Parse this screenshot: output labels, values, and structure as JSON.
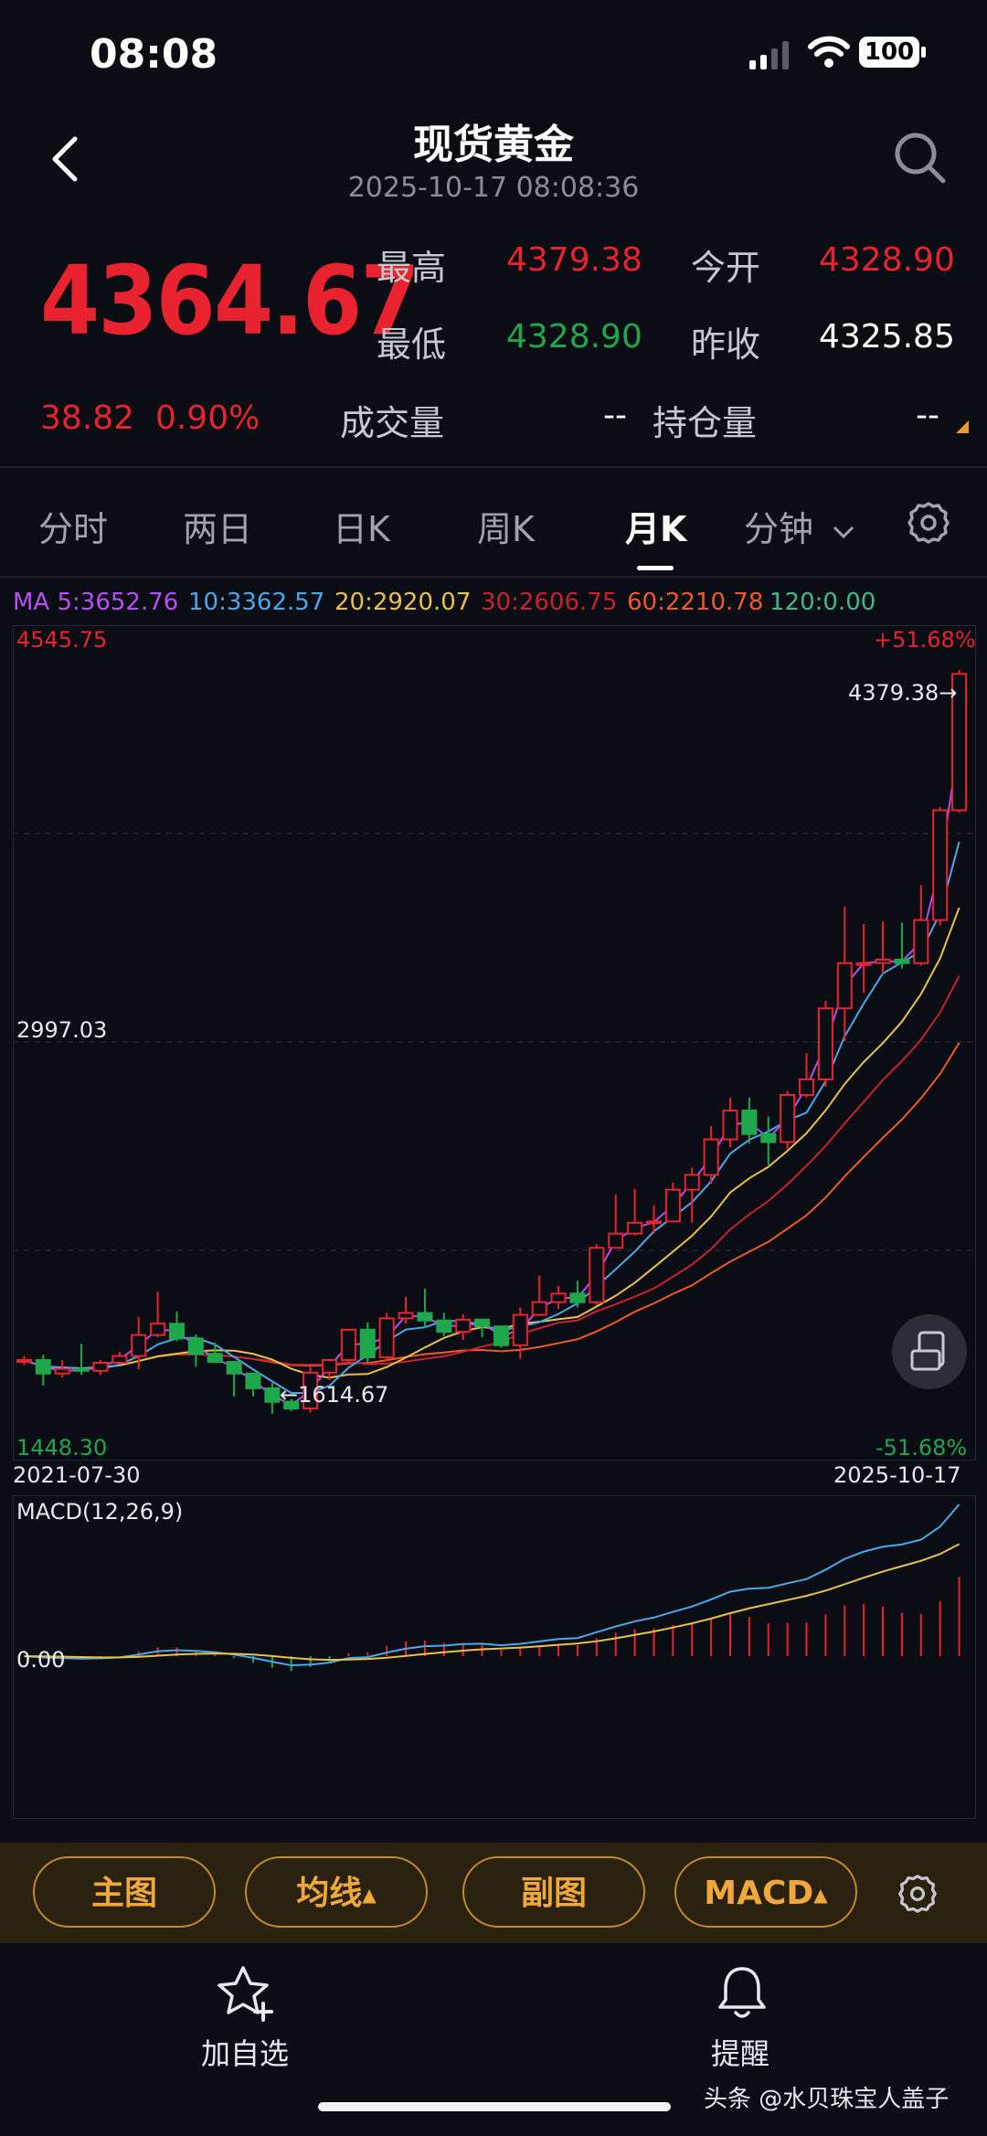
{
  "status": {
    "time": "08:08",
    "battery": "100"
  },
  "header": {
    "title": "现货黄金",
    "timestamp": "2025-10-17 08:08:36"
  },
  "quote": {
    "price": "4364.67",
    "change": "38.82",
    "change_pct": "0.90%",
    "high_label": "最高",
    "high": "4379.38",
    "open_label": "今开",
    "open": "4328.90",
    "low_label": "最低",
    "low": "4328.90",
    "prev_close_label": "昨收",
    "prev_close": "4325.85",
    "volume_label": "成交量",
    "volume": "--",
    "open_interest_label": "持仓量",
    "open_interest": "--"
  },
  "tabs": [
    "分时",
    "两日",
    "日K",
    "周K",
    "月K",
    "分钟"
  ],
  "active_tab": "月K",
  "ma_line": {
    "ma5": "MA 5:3652.76",
    "ma10": "10:3362.57",
    "ma20": "20:2920.07",
    "ma30": "30:2606.75",
    "ma60": "60:2210.78",
    "ma120": "120:0.00"
  },
  "chart_labels": {
    "top_price": "4545.75",
    "top_pct": "+51.68%",
    "mid_price": "2997.03",
    "bottom_price": "1448.30",
    "bottom_pct": "-51.68%",
    "high_marker": "4379.38→",
    "low_marker": "←1614.67",
    "start_date": "2021-07-30",
    "end_date": "2025-10-17",
    "macd_title": "MACD(12,26,9)",
    "macd_zero": "0.00"
  },
  "colors": {
    "up": "#e8232f",
    "down": "#1fa84b",
    "ma5": "#b94ef5",
    "ma10": "#4aa8ea",
    "ma20": "#e8c14a",
    "ma30": "#c9222f",
    "ma60": "#ef5a28",
    "button_accent": "#f0a83a"
  },
  "chart_data": {
    "type": "candlestick",
    "period": "monthly",
    "x_range": [
      "2021-07-30",
      "2025-10-17"
    ],
    "ylim": [
      1448.3,
      4545.75
    ],
    "candles": [
      [
        1810,
        1815,
        1830,
        1795
      ],
      [
        1815,
        1765,
        1835,
        1720
      ],
      [
        1765,
        1782,
        1815,
        1750
      ],
      [
        1782,
        1775,
        1875,
        1760
      ],
      [
        1775,
        1805,
        1815,
        1760
      ],
      [
        1805,
        1830,
        1845,
        1800
      ],
      [
        1830,
        1908,
        1975,
        1780
      ],
      [
        1908,
        1950,
        2070,
        1900
      ],
      [
        1950,
        1895,
        1995,
        1885
      ],
      [
        1895,
        1838,
        1910,
        1790
      ],
      [
        1838,
        1808,
        1880,
        1805
      ],
      [
        1808,
        1765,
        1800,
        1680
      ],
      [
        1765,
        1710,
        1765,
        1680
      ],
      [
        1710,
        1660,
        1730,
        1615
      ],
      [
        1660,
        1635,
        1670,
        1625
      ],
      [
        1635,
        1768,
        1790,
        1620
      ],
      [
        1768,
        1815,
        1818,
        1740
      ],
      [
        1815,
        1928,
        1930,
        1810
      ],
      [
        1928,
        1825,
        1955,
        1805
      ],
      [
        1825,
        1970,
        1990,
        1810
      ],
      [
        1970,
        1990,
        2050,
        1950
      ],
      [
        1990,
        1962,
        2080,
        1935
      ],
      [
        1962,
        1920,
        1990,
        1905
      ],
      [
        1920,
        1965,
        1985,
        1890
      ],
      [
        1965,
        1940,
        1965,
        1900
      ],
      [
        1940,
        1870,
        1940,
        1860
      ],
      [
        1870,
        1983,
        2010,
        1820
      ],
      [
        1983,
        2030,
        2130,
        1990
      ],
      [
        2030,
        2062,
        2090,
        2005
      ],
      [
        2062,
        2030,
        2110,
        2010
      ],
      [
        2030,
        2232,
        2245,
        2020
      ],
      [
        2232,
        2285,
        2430,
        2235
      ],
      [
        2285,
        2325,
        2450,
        2278
      ],
      [
        2325,
        2330,
        2390,
        2285
      ],
      [
        2330,
        2448,
        2475,
        2350
      ],
      [
        2448,
        2503,
        2530,
        2325
      ],
      [
        2503,
        2635,
        2685,
        2470
      ],
      [
        2635,
        2742,
        2790,
        2605
      ],
      [
        2742,
        2655,
        2790,
        2620
      ],
      [
        2655,
        2625,
        2720,
        2540
      ],
      [
        2625,
        2800,
        2815,
        2600
      ],
      [
        2800,
        2858,
        2955,
        2790
      ],
      [
        2858,
        3122,
        3150,
        2830
      ],
      [
        3122,
        3290,
        3500,
        3000
      ],
      [
        3290,
        3290,
        3435,
        3180
      ],
      [
        3290,
        3303,
        3445,
        3250
      ],
      [
        3303,
        3290,
        3440,
        3270
      ],
      [
        3290,
        3450,
        3580,
        3280
      ],
      [
        3450,
        3858,
        3870,
        3430
      ],
      [
        3858,
        4364.67,
        4379.38,
        3850
      ]
    ],
    "ma": {
      "MA5": 3652.76,
      "MA10": 3362.57,
      "MA20": 2920.07,
      "MA30": 2606.75,
      "MA60": 2210.78,
      "MA120": 0.0
    },
    "period_high": 4379.38,
    "period_low": 1614.67,
    "macd": {
      "params": "12,26,9",
      "zero": 0.0
    }
  },
  "bottom_buttons": [
    {
      "label": "主图"
    },
    {
      "label": "均线",
      "caret": "▲"
    },
    {
      "label": "副图"
    },
    {
      "label": "MACD",
      "caret": "▲"
    }
  ],
  "nav": {
    "watchlist": "加自选",
    "alert": "提醒"
  },
  "watermark": "头条 @水贝珠宝人盖子"
}
